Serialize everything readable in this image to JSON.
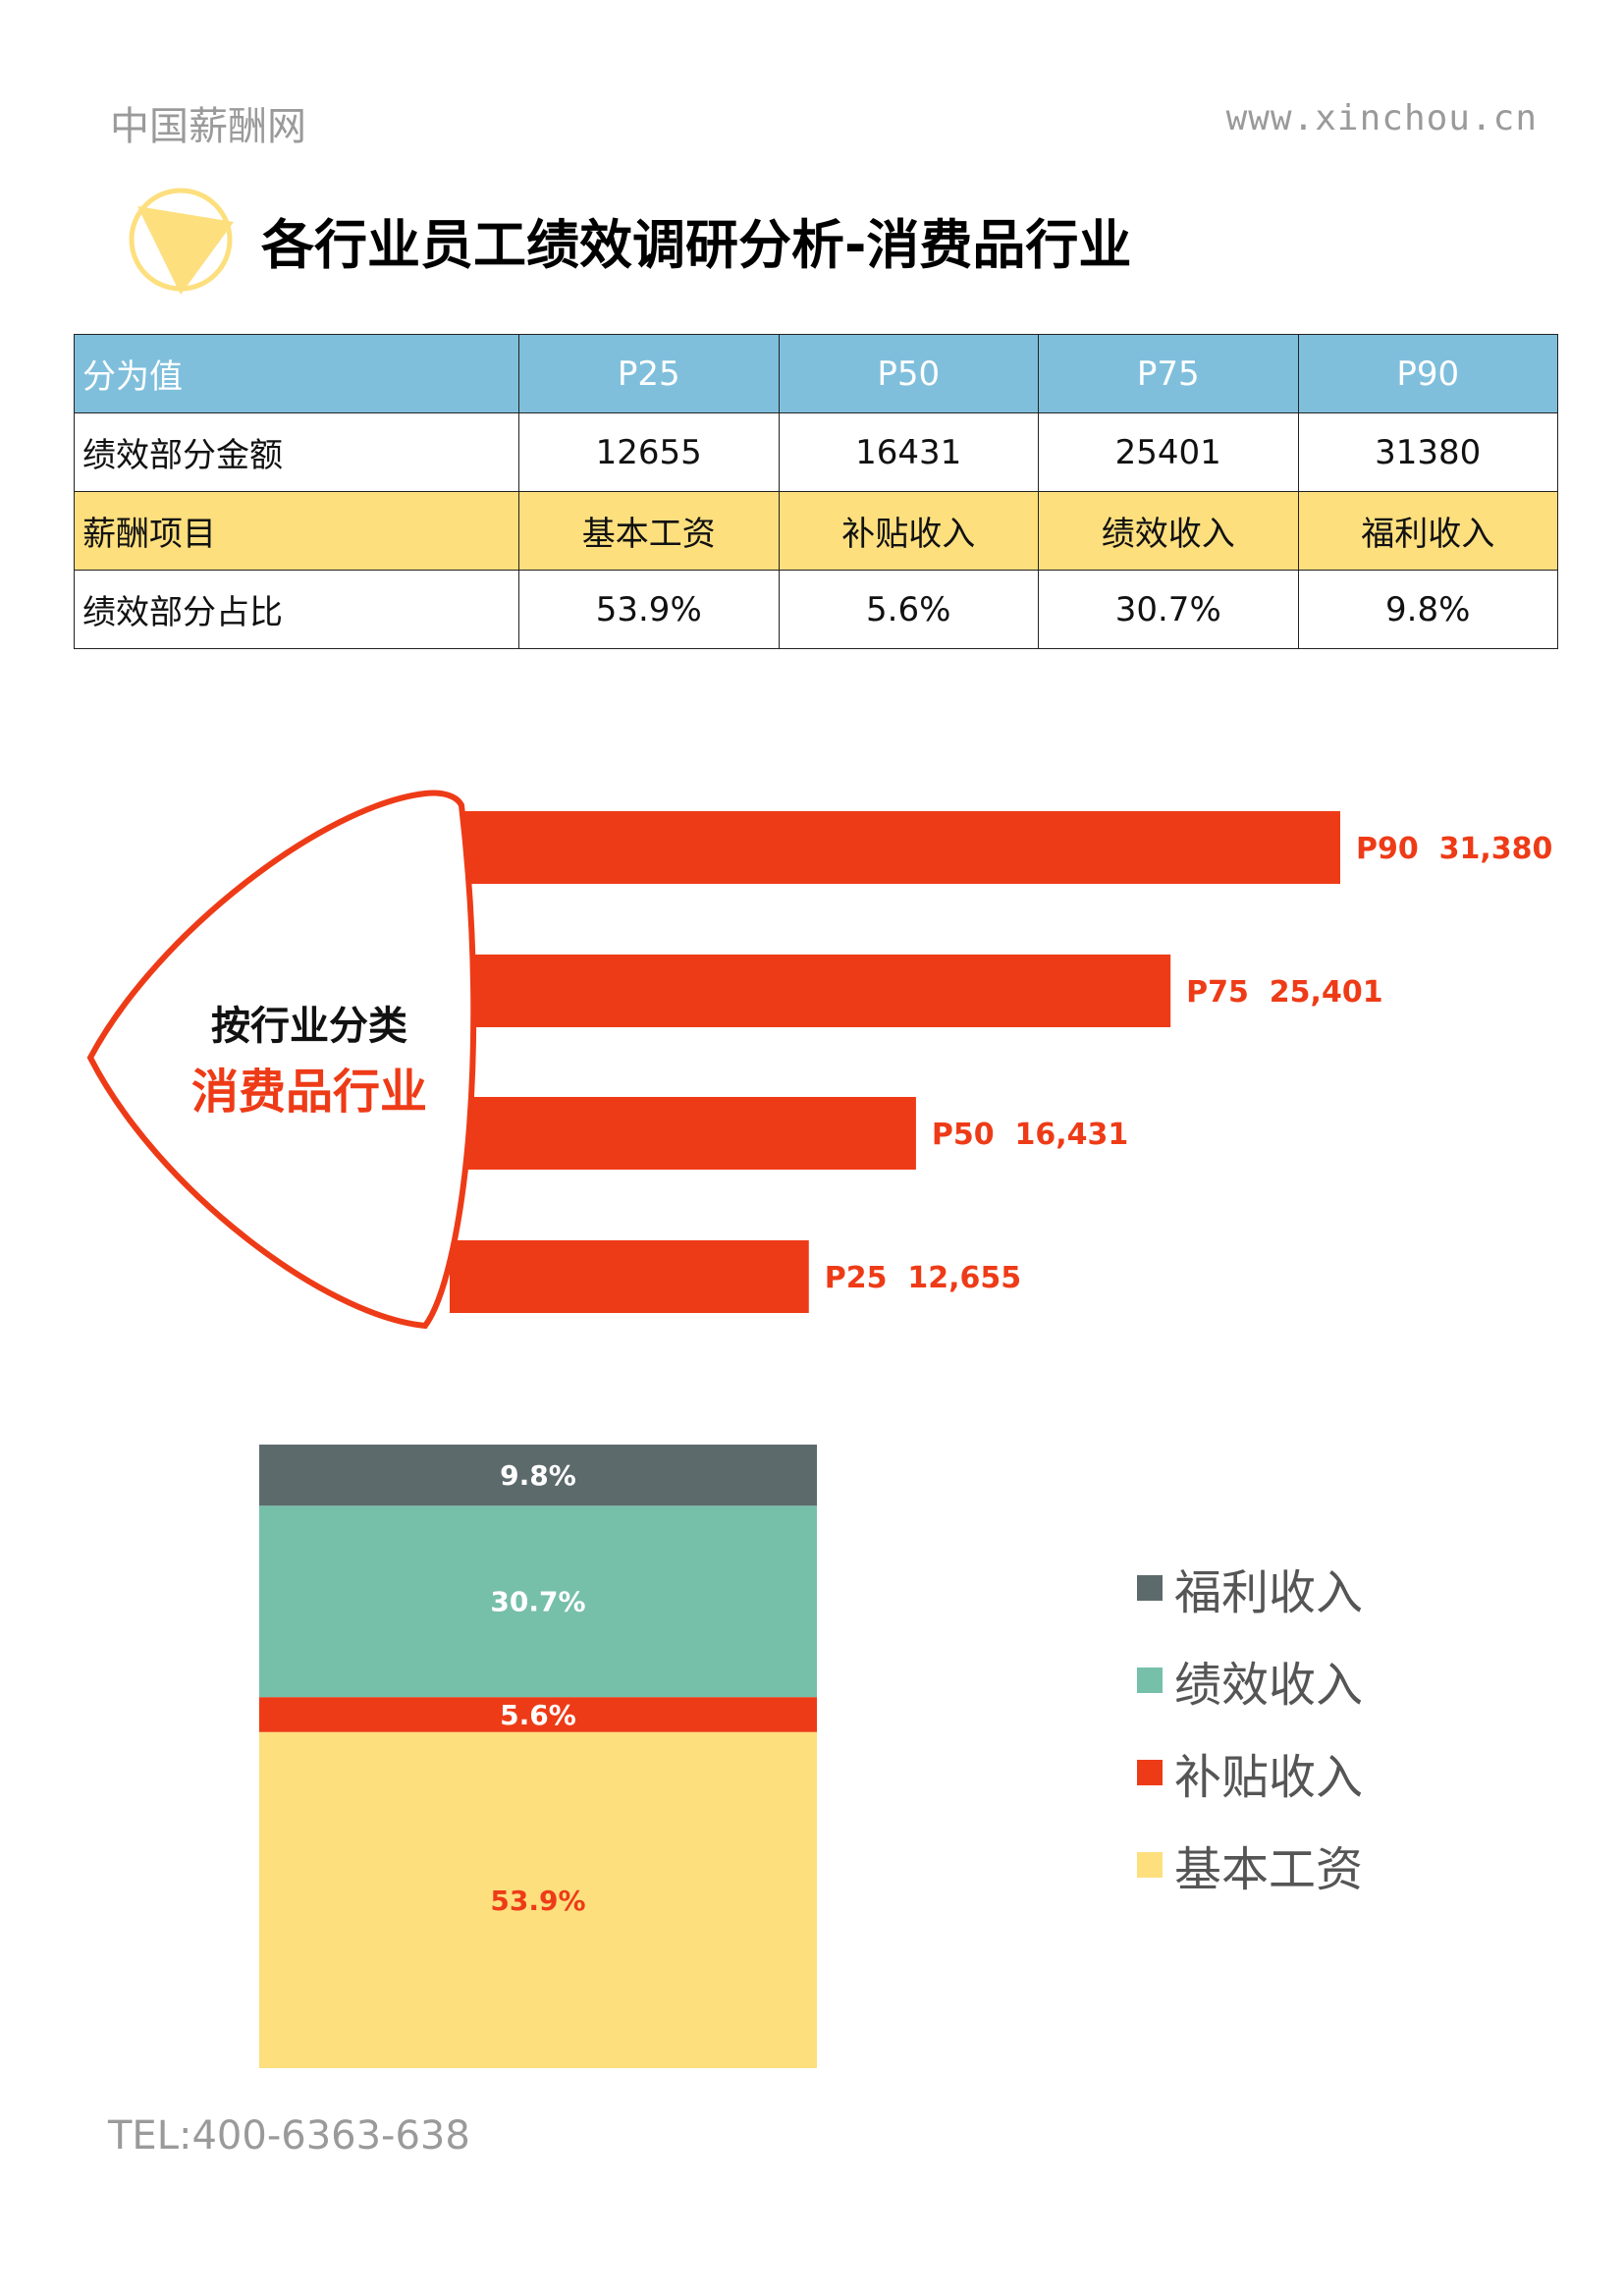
{
  "header": {
    "brand": "中国薪酬网",
    "site": "www.xinchou.cn"
  },
  "title": "各行业员工绩效调研分析-消费品行业",
  "table": {
    "rows": [
      {
        "label": "分为值",
        "cells": [
          "P25",
          "P50",
          "P75",
          "P90"
        ],
        "style": "blue"
      },
      {
        "label": "绩效部分金额",
        "cells": [
          "12655",
          "16431",
          "25401",
          "31380"
        ],
        "style": "white"
      },
      {
        "label": "薪酬项目",
        "cells": [
          "基本工资",
          "补贴收入",
          "绩效收入",
          "福利收入"
        ],
        "style": "yellow"
      },
      {
        "label": "绩效部分占比",
        "cells": [
          "53.9%",
          "5.6%",
          "30.7%",
          "9.8%"
        ],
        "style": "white"
      }
    ]
  },
  "shield": {
    "line1": "按行业分类",
    "line2": "消费品行业"
  },
  "footer": {
    "tel": "TEL:400-6363-638"
  },
  "colors": {
    "red": "#ee3b17",
    "yellow": "#fddf7e",
    "teal": "#76bfa9",
    "grey": "#5c6a6c",
    "blue": "#7fbfdc"
  },
  "chart_data": [
    {
      "type": "bar",
      "orientation": "horizontal",
      "categories": [
        "P90",
        "P75",
        "P50",
        "P25"
      ],
      "values": [
        31380,
        25401,
        16431,
        12655
      ],
      "labels": [
        "P90  31,380",
        "P75  25,401",
        "P50  16,431",
        "P25  12,655"
      ],
      "title": "按行业分类 消费品行业",
      "xlim": [
        0,
        31380
      ],
      "grid": false
    },
    {
      "type": "bar",
      "stacked": true,
      "series": [
        {
          "name": "基本工资",
          "value": 53.9,
          "label": "53.9%",
          "color": "#fddf7e",
          "label_color": "#ee3b17"
        },
        {
          "name": "补贴收入",
          "value": 5.6,
          "label": "5.6%",
          "color": "#ee3b17",
          "label_color": "#ffffff"
        },
        {
          "name": "绩效收入",
          "value": 30.7,
          "label": "30.7%",
          "color": "#76bfa9",
          "label_color": "#ffffff"
        },
        {
          "name": "福利收入",
          "value": 9.8,
          "label": "9.8%",
          "color": "#5c6a6c",
          "label_color": "#ffffff"
        }
      ],
      "legend": [
        "福利收入",
        "绩效收入",
        "补贴收入",
        "基本工资"
      ],
      "legend_position": "right",
      "ylim": [
        0,
        100
      ]
    }
  ]
}
